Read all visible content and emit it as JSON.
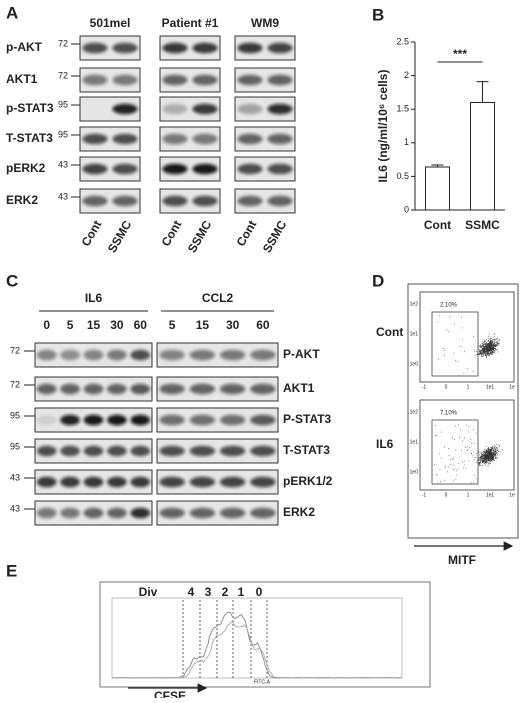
{
  "panel_a": {
    "label": "A",
    "cell_lines": [
      "501mel",
      "Patient #1",
      "WM9"
    ],
    "conditions": [
      "Cont",
      "SSMC"
    ],
    "rows": [
      {
        "protein": "p-AKT",
        "mw": 72
      },
      {
        "protein": "AKT1",
        "mw": 72
      },
      {
        "protein": "p-STAT3",
        "mw": 95
      },
      {
        "protein": "T-STAT3",
        "mw": 95
      },
      {
        "protein": "pERK2",
        "mw": 43
      },
      {
        "protein": "ERK2",
        "mw": 43
      }
    ]
  },
  "panel_b": {
    "label": "B"
  },
  "chart_data": {
    "type": "bar",
    "ylabel": "IL6 (ng/ml/10⁶ cells)",
    "categories": [
      "Cont",
      "SSMC"
    ],
    "values": [
      0.64,
      1.6
    ],
    "errors": [
      0.03,
      0.31
    ],
    "color": "#ffffff",
    "ylim": [
      0,
      2.5
    ],
    "yticks": [
      0,
      0.5,
      1,
      1.5,
      2,
      2.5
    ],
    "significance": "***"
  },
  "panel_c": {
    "label": "C",
    "groups": [
      {
        "name": "IL6",
        "times": [
          0,
          5,
          15,
          30,
          60
        ]
      },
      {
        "name": "CCL2",
        "times": [
          5,
          15,
          30,
          60
        ]
      }
    ],
    "rows": [
      {
        "protein": "P-AKT",
        "mw": 72
      },
      {
        "protein": "AKT1",
        "mw": 72
      },
      {
        "protein": "P-STAT3",
        "mw": 95
      },
      {
        "protein": "T-STAT3",
        "mw": 95
      },
      {
        "protein": "pERK1/2",
        "mw": 43
      },
      {
        "protein": "ERK2",
        "mw": 43
      }
    ]
  },
  "panel_d": {
    "label": "D",
    "samples": [
      {
        "name": "Cont",
        "gate": "2.10%"
      },
      {
        "name": "IL6",
        "gate": "7.10%"
      }
    ],
    "yticks": [
      "1e2",
      "1e1",
      "1e0"
    ],
    "xticks": [
      "-1",
      "0",
      "1",
      "1e1",
      "1e"
    ],
    "xlabel": "MITF"
  },
  "panel_e": {
    "label": "E",
    "div_label": "Div",
    "divisions": [
      4,
      3,
      2,
      1,
      0
    ],
    "xlabel": "CFSE",
    "channel": "FITC-A"
  }
}
